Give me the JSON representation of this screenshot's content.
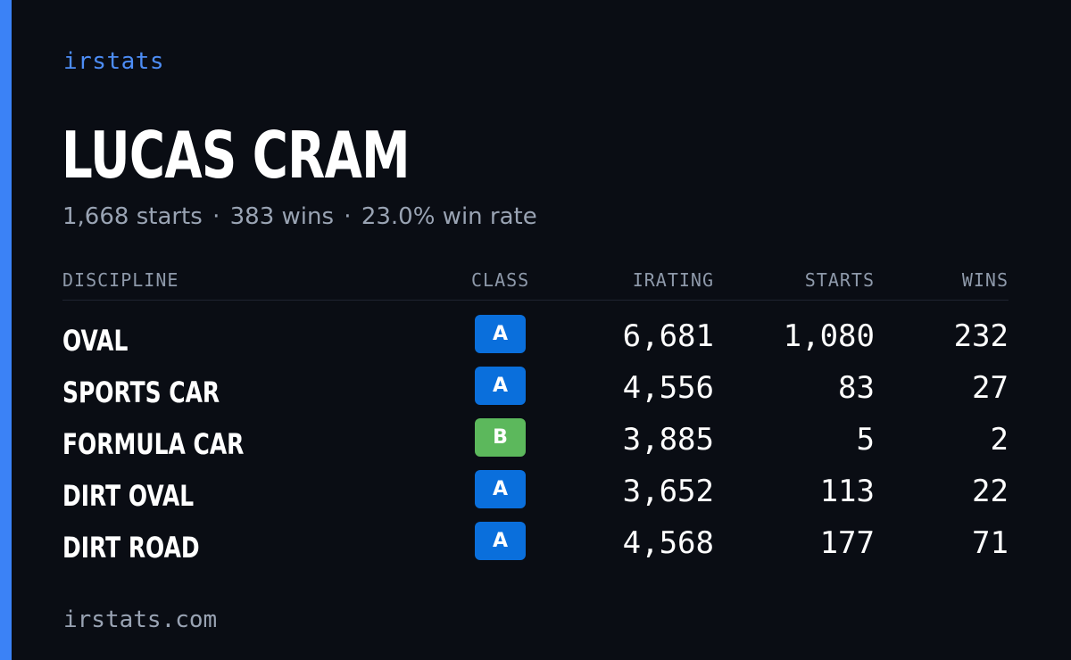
{
  "brand": "irstats",
  "driver": {
    "name": "LUCAS CRAM",
    "starts_text": "1,668 starts",
    "wins_text": "383 wins",
    "win_rate_text": "23.0% win rate",
    "separator": "·"
  },
  "table": {
    "headers": {
      "discipline": "DISCIPLINE",
      "class": "CLASS",
      "irating": "IRATING",
      "starts": "STARTS",
      "wins": "WINS"
    },
    "rows": [
      {
        "discipline": "OVAL",
        "class": "A",
        "class_color": "#0a6fdc",
        "irating": "6,681",
        "starts": "1,080",
        "wins": "232"
      },
      {
        "discipline": "SPORTS CAR",
        "class": "A",
        "class_color": "#0a6fdc",
        "irating": "4,556",
        "starts": "83",
        "wins": "27"
      },
      {
        "discipline": "FORMULA CAR",
        "class": "B",
        "class_color": "#5cb85c",
        "irating": "3,885",
        "starts": "5",
        "wins": "2"
      },
      {
        "discipline": "DIRT OVAL",
        "class": "A",
        "class_color": "#0a6fdc",
        "irating": "3,652",
        "starts": "113",
        "wins": "22"
      },
      {
        "discipline": "DIRT ROAD",
        "class": "A",
        "class_color": "#0a6fdc",
        "irating": "4,568",
        "starts": "177",
        "wins": "71"
      }
    ]
  },
  "footer": "irstats.com",
  "colors": {
    "background": "#0a0d14",
    "accent": "#3b82f6",
    "class_a": "#0a6fdc",
    "class_b": "#5cb85c"
  }
}
